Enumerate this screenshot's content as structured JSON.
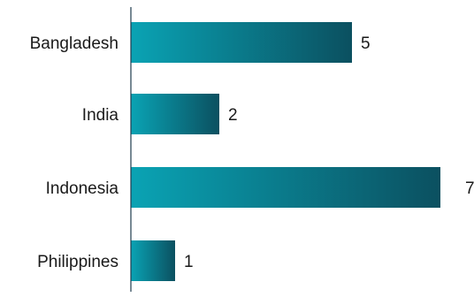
{
  "chart_data": {
    "type": "bar",
    "orientation": "horizontal",
    "categories": [
      "Bangladesh",
      "India",
      "Indonesia",
      "Philippines"
    ],
    "values": [
      5,
      2,
      7,
      1
    ],
    "data_labels": [
      "5",
      "2",
      "7",
      "1"
    ],
    "xlim": [
      0,
      7
    ],
    "grid": false,
    "legend": "none",
    "colors": {
      "bar_start": "#0aa3b4",
      "bar_end": "#0b5060",
      "axis": "#1f3b4d",
      "text": "#1a1a1a"
    }
  }
}
